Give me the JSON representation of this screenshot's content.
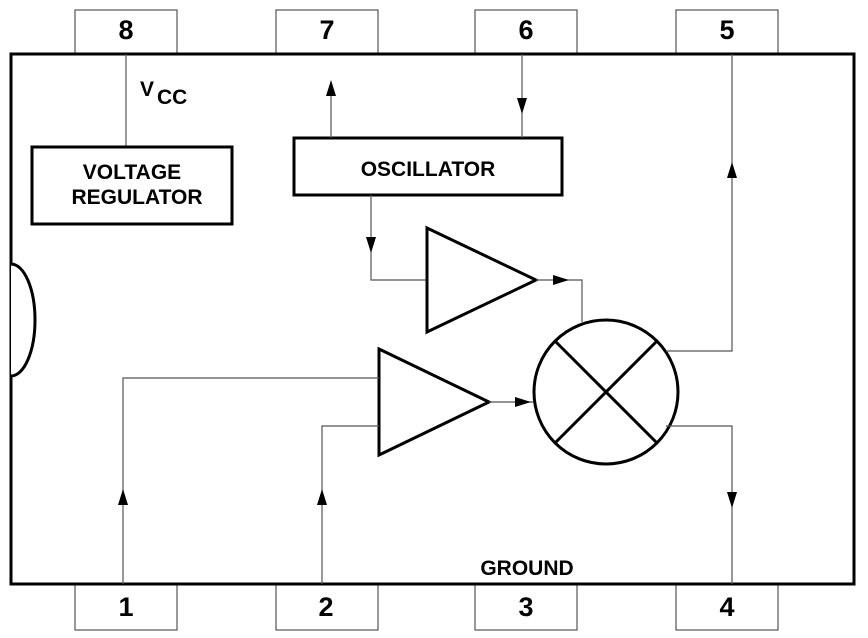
{
  "pins": {
    "p1": "1",
    "p2": "2",
    "p3": "3",
    "p4": "4",
    "p5": "5",
    "p6": "6",
    "p7": "7",
    "p8": "8"
  },
  "labels": {
    "vcc_main": "V",
    "vcc_sub": "CC",
    "regulator_line1": "VOLTAGE",
    "regulator_line2": "REGULATOR",
    "oscillator": "OSCILLATOR",
    "ground": "GROUND"
  }
}
